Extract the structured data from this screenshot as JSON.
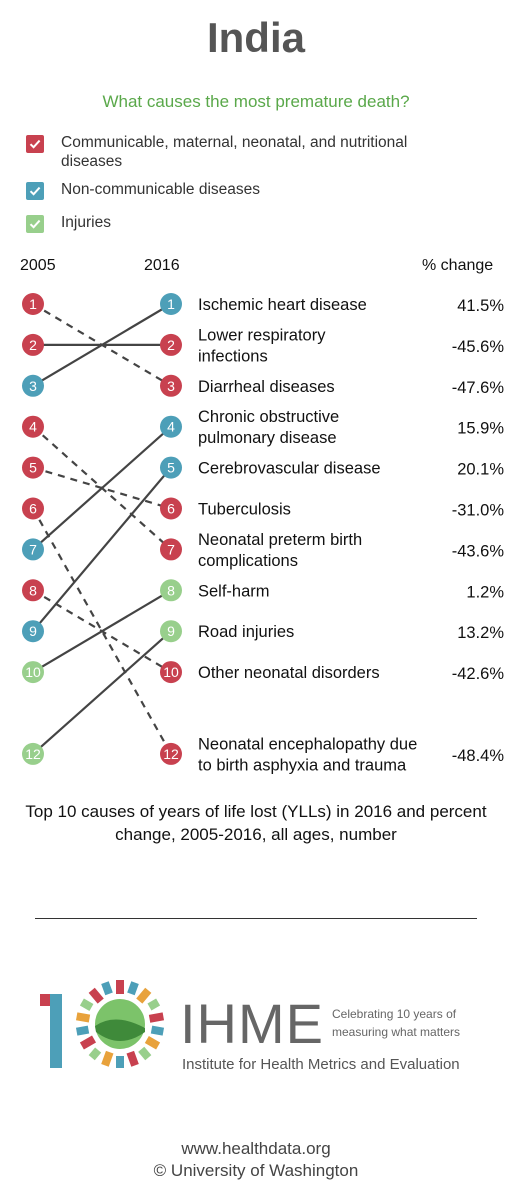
{
  "page": {
    "title": "India",
    "subtitle": "What causes the most premature death?",
    "legend": [
      {
        "label": "Communicable, maternal, neonatal, and nutritional diseases",
        "color": "#c8414f",
        "icon": "check-icon"
      },
      {
        "label": "Non-communicable diseases",
        "color": "#4d9fb8",
        "icon": "check-icon"
      },
      {
        "label": "Injuries",
        "color": "#98cf8c",
        "icon": "check-icon"
      }
    ],
    "columns": {
      "left": "2005",
      "middle": "2016",
      "right": "% change"
    },
    "caption": "Top 10 causes of years of life lost (YLLs) in 2016 and percent change, 2005-2016, all ages, number",
    "logo": {
      "big": "IHME",
      "tagline1": "Celebrating 10 years of",
      "tagline2": "measuring what matters",
      "fullname": "Institute for Health Metrics and Evaluation"
    },
    "footer": {
      "url": "www.healthdata.org",
      "copyright": "© University of Washington"
    }
  },
  "chart_data": {
    "type": "slope",
    "title": "What causes the most premature death?",
    "x": [
      "2005",
      "2016"
    ],
    "category_colors": {
      "communicable": "#c8414f",
      "non-communicable": "#4d9fb8",
      "injuries": "#98cf8c"
    },
    "rank_2005_visible": [
      1,
      2,
      3,
      4,
      5,
      6,
      7,
      8,
      9,
      10,
      12
    ],
    "causes": [
      {
        "name": "Ischemic heart disease",
        "rank_2005": 3,
        "rank_2016": 1,
        "pct_change": "41.5%",
        "category": "non-communicable",
        "rising": true
      },
      {
        "name": "Lower respiratory infections",
        "rank_2005": 2,
        "rank_2016": 2,
        "pct_change": "-45.6%",
        "category": "communicable",
        "rising": true
      },
      {
        "name": "Diarrheal diseases",
        "rank_2005": 1,
        "rank_2016": 3,
        "pct_change": "-47.6%",
        "category": "communicable",
        "rising": false
      },
      {
        "name": "Chronic obstructive pulmonary disease",
        "rank_2005": 7,
        "rank_2016": 4,
        "pct_change": "15.9%",
        "category": "non-communicable",
        "rising": true
      },
      {
        "name": "Cerebrovascular disease",
        "rank_2005": 9,
        "rank_2016": 5,
        "pct_change": "20.1%",
        "category": "non-communicable",
        "rising": true
      },
      {
        "name": "Tuberculosis",
        "rank_2005": 5,
        "rank_2016": 6,
        "pct_change": "-31.0%",
        "category": "communicable",
        "rising": false
      },
      {
        "name": "Neonatal preterm birth complications",
        "rank_2005": 4,
        "rank_2016": 7,
        "pct_change": "-43.6%",
        "category": "communicable",
        "rising": false
      },
      {
        "name": "Self-harm",
        "rank_2005": 10,
        "rank_2016": 8,
        "pct_change": "1.2%",
        "category": "injuries",
        "rising": true
      },
      {
        "name": "Road injuries",
        "rank_2005": 12,
        "rank_2016": 9,
        "pct_change": "13.2%",
        "category": "injuries",
        "rising": true
      },
      {
        "name": "Other neonatal disorders",
        "rank_2005": 8,
        "rank_2016": 10,
        "pct_change": "-42.6%",
        "category": "communicable",
        "rising": false
      },
      {
        "name": "Neonatal encephalopathy due to birth asphyxia and trauma",
        "rank_2005": 6,
        "rank_2016": 12,
        "pct_change": "-48.4%",
        "category": "communicable",
        "rising": false
      }
    ]
  }
}
